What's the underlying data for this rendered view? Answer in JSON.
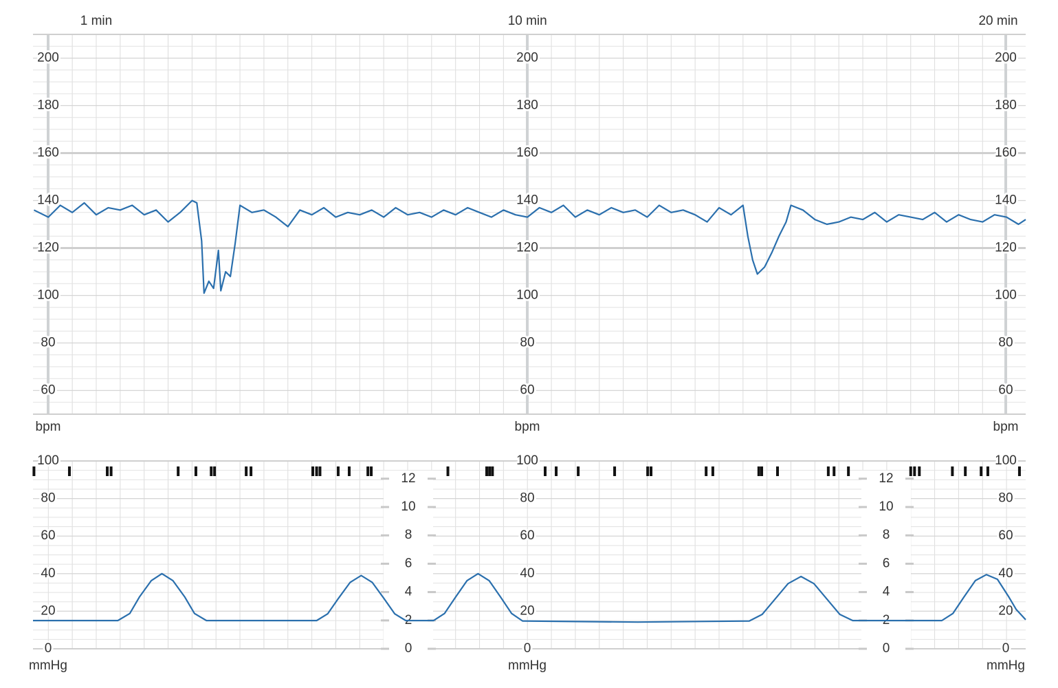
{
  "chart_data": [
    {
      "type": "line",
      "y_label": "bpm",
      "color": "#2a6fad",
      "xlim": [
        -0.32,
        20.4
      ],
      "xticks": [
        {
          "value": 1,
          "label": "1 min"
        },
        {
          "value": 10,
          "label": "10 min"
        },
        {
          "value": 20,
          "label": "20 min"
        }
      ],
      "ylim": [
        50,
        210
      ],
      "yticks": [
        60,
        80,
        100,
        120,
        140,
        160,
        180,
        200
      ],
      "reference_lines": [
        120,
        160
      ],
      "grid": true,
      "x": [
        -0.3,
        0,
        0.25,
        0.5,
        0.75,
        1,
        1.25,
        1.5,
        1.75,
        2,
        2.25,
        2.5,
        2.75,
        3,
        3.1,
        3.2,
        3.25,
        3.35,
        3.45,
        3.55,
        3.6,
        3.7,
        3.8,
        3.9,
        4,
        4.25,
        4.5,
        4.75,
        5,
        5.25,
        5.5,
        5.75,
        6,
        6.25,
        6.5,
        6.75,
        7,
        7.25,
        7.5,
        7.75,
        8,
        8.25,
        8.5,
        8.75,
        9,
        9.25,
        9.5,
        9.75,
        10,
        10.25,
        10.5,
        10.75,
        11,
        11.25,
        11.5,
        11.75,
        12,
        12.25,
        12.5,
        12.75,
        13,
        13.25,
        13.5,
        13.75,
        14,
        14.25,
        14.5,
        14.6,
        14.7,
        14.8,
        14.95,
        15.1,
        15.25,
        15.4,
        15.5,
        15.75,
        16,
        16.25,
        16.5,
        16.75,
        17,
        17.25,
        17.5,
        17.75,
        18,
        18.25,
        18.5,
        18.75,
        19,
        19.25,
        19.5,
        19.75,
        20,
        20.25,
        20.4
      ],
      "values": [
        136,
        133,
        138,
        135,
        139,
        134,
        137,
        136,
        138,
        134,
        136,
        131,
        135,
        140,
        139,
        123,
        101,
        106,
        103,
        119,
        102,
        110,
        108,
        122,
        138,
        135,
        136,
        133,
        129,
        136,
        134,
        137,
        133,
        135,
        134,
        136,
        133,
        137,
        134,
        135,
        133,
        136,
        134,
        137,
        135,
        133,
        136,
        134,
        133,
        137,
        135,
        138,
        133,
        136,
        134,
        137,
        135,
        136,
        133,
        138,
        135,
        136,
        134,
        131,
        137,
        134,
        138,
        125,
        115,
        109,
        112,
        118,
        125,
        131,
        138,
        136,
        132,
        130,
        131,
        133,
        132,
        135,
        131,
        134,
        133,
        132,
        135,
        131,
        134,
        132,
        131,
        134,
        133,
        130,
        132
      ]
    },
    {
      "type": "line",
      "y_label": "mmHg",
      "color": "#2a6fad",
      "xlim": [
        -0.32,
        20.4
      ],
      "ylim": [
        0,
        100
      ],
      "yticks": [
        0,
        20,
        40,
        60,
        80,
        100
      ],
      "y2lim": [
        0,
        13.25
      ],
      "y2ticks": [
        0,
        2,
        4,
        6,
        8,
        10,
        12
      ],
      "grid": true,
      "x": [
        -0.32,
        1.45,
        1.7,
        1.9,
        2.15,
        2.37,
        2.6,
        2.85,
        3.05,
        3.3,
        5.6,
        5.83,
        6.06,
        6.3,
        6.53,
        6.76,
        7,
        7.23,
        7.46,
        8.04,
        8.27,
        8.5,
        8.74,
        8.97,
        9.2,
        9.44,
        9.67,
        9.9,
        12.3,
        14.63,
        14.9,
        15.17,
        15.44,
        15.71,
        15.98,
        16.25,
        16.52,
        16.79,
        18.65,
        18.88,
        19.11,
        19.35,
        19.58,
        19.81,
        20.05,
        20.2,
        20.4
      ],
      "values": [
        15,
        15,
        18.8,
        27.5,
        36.3,
        40,
        36.3,
        27.5,
        18.8,
        15,
        15,
        18.6,
        27,
        35.4,
        39,
        35.4,
        27,
        18.6,
        15,
        15,
        18.8,
        27.5,
        36.3,
        40,
        36.3,
        27.5,
        18.8,
        14.8,
        14.2,
        14.8,
        18.3,
        26.5,
        34.7,
        38.5,
        34.7,
        26.5,
        18.3,
        15,
        15,
        18.8,
        27.5,
        36.3,
        39.5,
        37,
        27.5,
        21,
        15.5
      ],
      "events": [
        -0.3,
        0.44,
        1.23,
        1.31,
        2.71,
        3.08,
        3.4,
        3.47,
        4.13,
        4.23,
        5.52,
        5.6,
        5.67,
        6.05,
        6.28,
        6.67,
        6.74,
        8.34,
        9.15,
        9.21,
        9.27,
        10.37,
        10.6,
        11.06,
        11.82,
        12.51,
        12.58,
        13.73,
        13.87,
        14.83,
        14.89,
        15.22,
        16.28,
        16.4,
        16.7,
        18.0,
        18.08,
        18.18,
        18.87,
        19.14,
        19.47,
        19.61,
        20.27
      ],
      "event_color": "#111111"
    }
  ]
}
